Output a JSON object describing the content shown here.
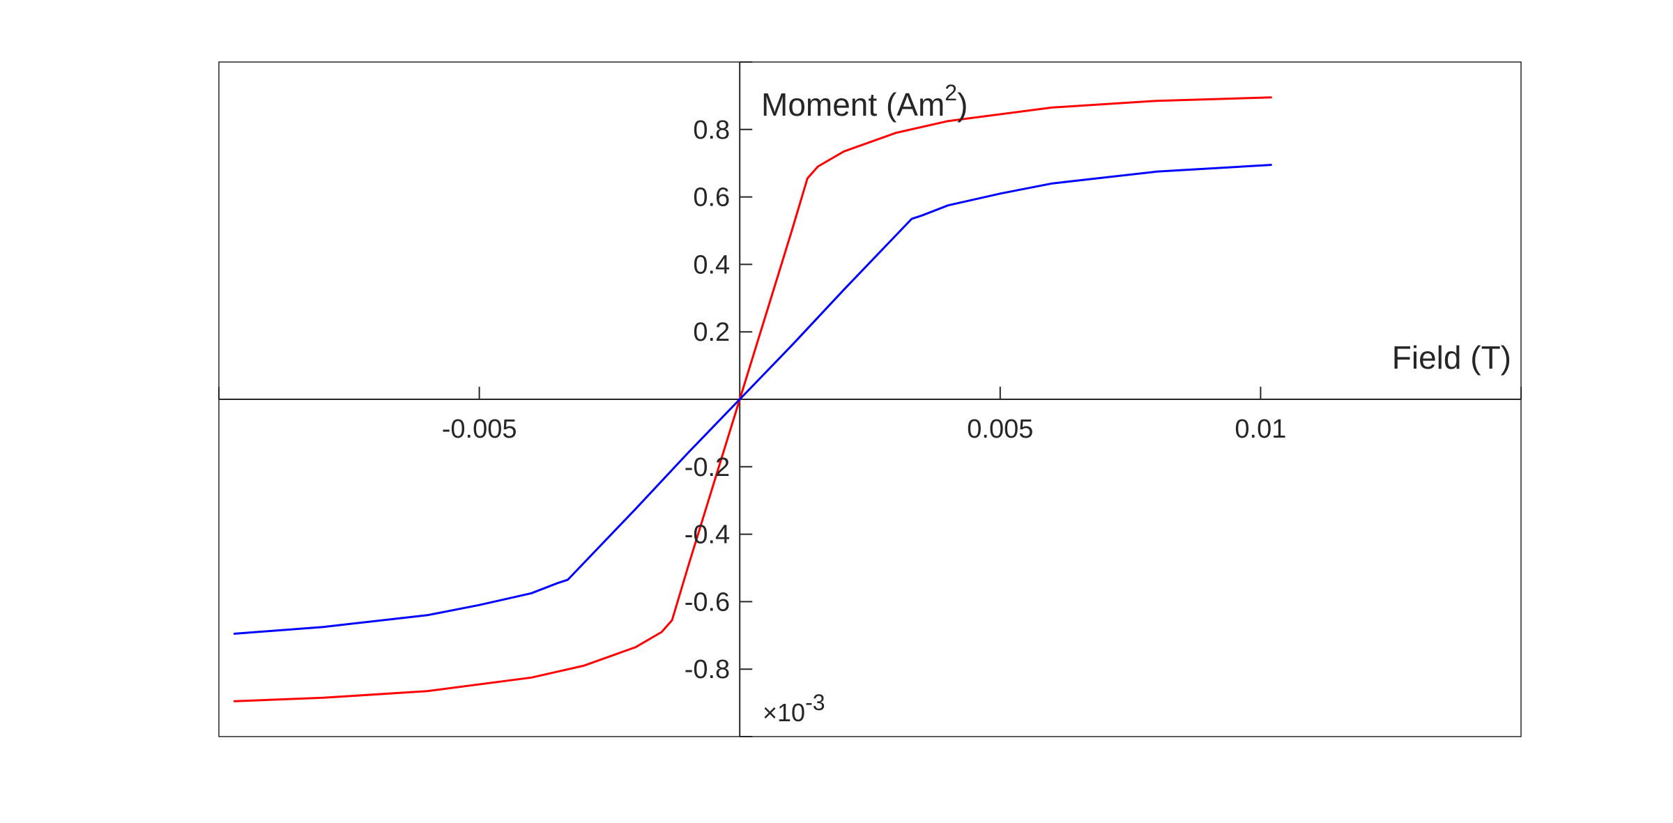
{
  "chart_data": {
    "type": "line",
    "xlabel": "Field (T)",
    "ylabel": {
      "base": "Moment (Am",
      "sup": "2",
      "tail": ")"
    },
    "exponent_label": {
      "base": "×10",
      "sup": "-3"
    },
    "xlim": [
      -0.01,
      0.015
    ],
    "ylim": [
      -1.0,
      1.0
    ],
    "x_ticks": [
      -0.005,
      0.005,
      0.01
    ],
    "x_tick_labels": [
      "-0.005",
      "0.005",
      "0.01"
    ],
    "y_ticks": [
      -0.8,
      -0.6,
      -0.4,
      -0.2,
      0.2,
      0.4,
      0.6,
      0.8
    ],
    "y_tick_labels": [
      "-0.8",
      "-0.6",
      "-0.4",
      "-0.2",
      "0.2",
      "0.4",
      "0.6",
      "0.8"
    ],
    "grid": false,
    "axes_through_origin": true,
    "series": [
      {
        "color": "#ff0000",
        "x": [
          -0.0097,
          -0.008,
          -0.006,
          -0.004,
          -0.003,
          -0.002,
          -0.0015,
          -0.0013,
          -0.001,
          -0.0005,
          0,
          0.0005,
          0.001,
          0.0013,
          0.0015,
          0.002,
          0.003,
          0.004,
          0.006,
          0.008,
          0.0102
        ],
        "y": [
          -0.895,
          -0.885,
          -0.865,
          -0.825,
          -0.79,
          -0.735,
          -0.69,
          -0.655,
          -0.5,
          -0.25,
          0,
          0.25,
          0.5,
          0.655,
          0.69,
          0.735,
          0.79,
          0.825,
          0.865,
          0.885,
          0.895
        ]
      },
      {
        "color": "#0000ff",
        "x": [
          -0.0097,
          -0.008,
          -0.006,
          -0.005,
          -0.004,
          -0.0035,
          -0.0033,
          -0.002,
          -0.001,
          0,
          0.001,
          0.002,
          0.0033,
          0.0035,
          0.004,
          0.005,
          0.006,
          0.008,
          0.0102
        ],
        "y": [
          -0.695,
          -0.675,
          -0.64,
          -0.61,
          -0.575,
          -0.545,
          -0.535,
          -0.325,
          -0.16,
          0,
          0.16,
          0.325,
          0.535,
          0.545,
          0.575,
          0.61,
          0.64,
          0.675,
          0.695
        ]
      }
    ]
  }
}
